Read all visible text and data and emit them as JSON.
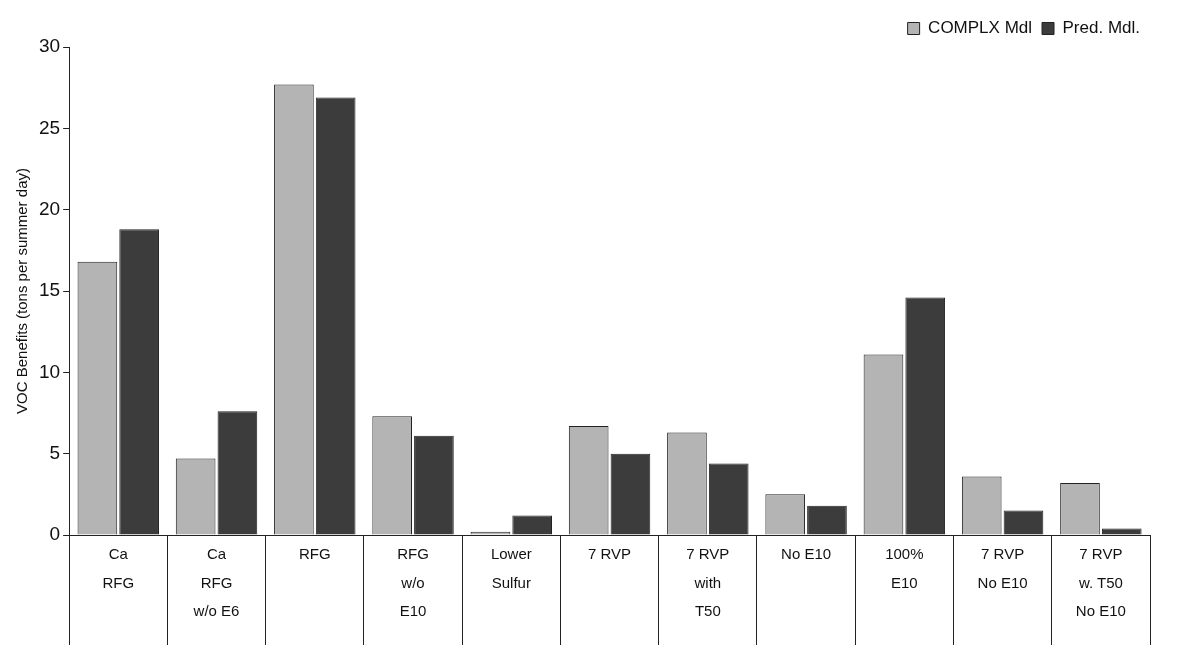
{
  "chart_data": {
    "type": "bar",
    "ylabel": "VOC Benefits (tons per summer day)",
    "categories": [
      "Ca RFG",
      "Ca RFG w/o E6",
      "RFG",
      "RFG w/o E10",
      "Lower Sulfur",
      "7 RVP",
      "7 RVP with T50",
      "No E10",
      "100% E10",
      "7 RVP No E10",
      "7 RVP w. T50 No E10"
    ],
    "series": [
      {
        "name": "COMPLX Mdl",
        "color": "#b4b4b4",
        "values": [
          16.8,
          4.7,
          27.7,
          7.3,
          0.2,
          6.7,
          6.3,
          2.5,
          11.1,
          3.6,
          3.2
        ]
      },
      {
        "name": "Pred. Mdl.",
        "color": "#3c3c3c",
        "values": [
          18.8,
          7.6,
          26.9,
          6.1,
          1.2,
          5.0,
          4.4,
          1.8,
          14.6,
          1.5,
          0.4
        ]
      }
    ],
    "ylim": [
      0,
      30
    ],
    "yticks": [
      0,
      5,
      10,
      15,
      20,
      25,
      30
    ],
    "grid": false,
    "legend": "top right"
  }
}
